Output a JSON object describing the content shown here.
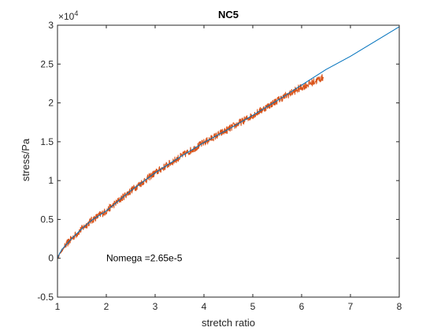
{
  "chart_data": {
    "type": "line",
    "title": "NC5",
    "xlabel": "stretch ratio",
    "ylabel": "stress/Pa",
    "xlim": [
      1,
      8
    ],
    "ylim": [
      -5000,
      30000
    ],
    "x_ticks": [
      1,
      2,
      3,
      4,
      5,
      6,
      7,
      8
    ],
    "y_ticks": [
      -5000,
      0,
      5000,
      10000,
      15000,
      20000,
      25000,
      30000
    ],
    "y_tick_labels": [
      "-0.5",
      "0",
      "0.5",
      "1",
      "1.5",
      "2",
      "2.5",
      "3"
    ],
    "y_exponent_base": "×10",
    "y_exponent_power": "4",
    "grid": false,
    "legend": "none",
    "annotations": [
      {
        "text": "Nomega =2.65e-5",
        "x": 2.0,
        "y": 0
      }
    ],
    "series": [
      {
        "color": "#0072BD",
        "style": "smooth",
        "x": [
          1.0,
          1.05,
          1.1,
          1.2,
          1.3,
          1.5,
          1.7,
          2.0,
          2.5,
          3.0,
          3.5,
          4.0,
          4.5,
          5.0,
          5.5,
          6.0,
          6.5,
          7.0,
          7.5,
          8.0
        ],
        "y": [
          0,
          700,
          1200,
          1900,
          2600,
          3800,
          4900,
          6100,
          8700,
          11000,
          13000,
          14900,
          16600,
          18400,
          20300,
          22300,
          24300,
          26000,
          27900,
          29800
        ]
      },
      {
        "color": "#D95319",
        "style": "noisy",
        "noise": 500,
        "x": [
          1.0,
          1.05,
          1.1,
          1.2,
          1.3,
          1.5,
          1.7,
          2.0,
          2.5,
          3.0,
          3.5,
          4.0,
          4.5,
          5.0,
          5.5,
          6.0,
          6.45
        ],
        "y": [
          0,
          600,
          1100,
          1900,
          2600,
          3800,
          4900,
          6100,
          8700,
          11000,
          13000,
          14900,
          16600,
          18400,
          20300,
          22000,
          23300
        ]
      }
    ]
  }
}
